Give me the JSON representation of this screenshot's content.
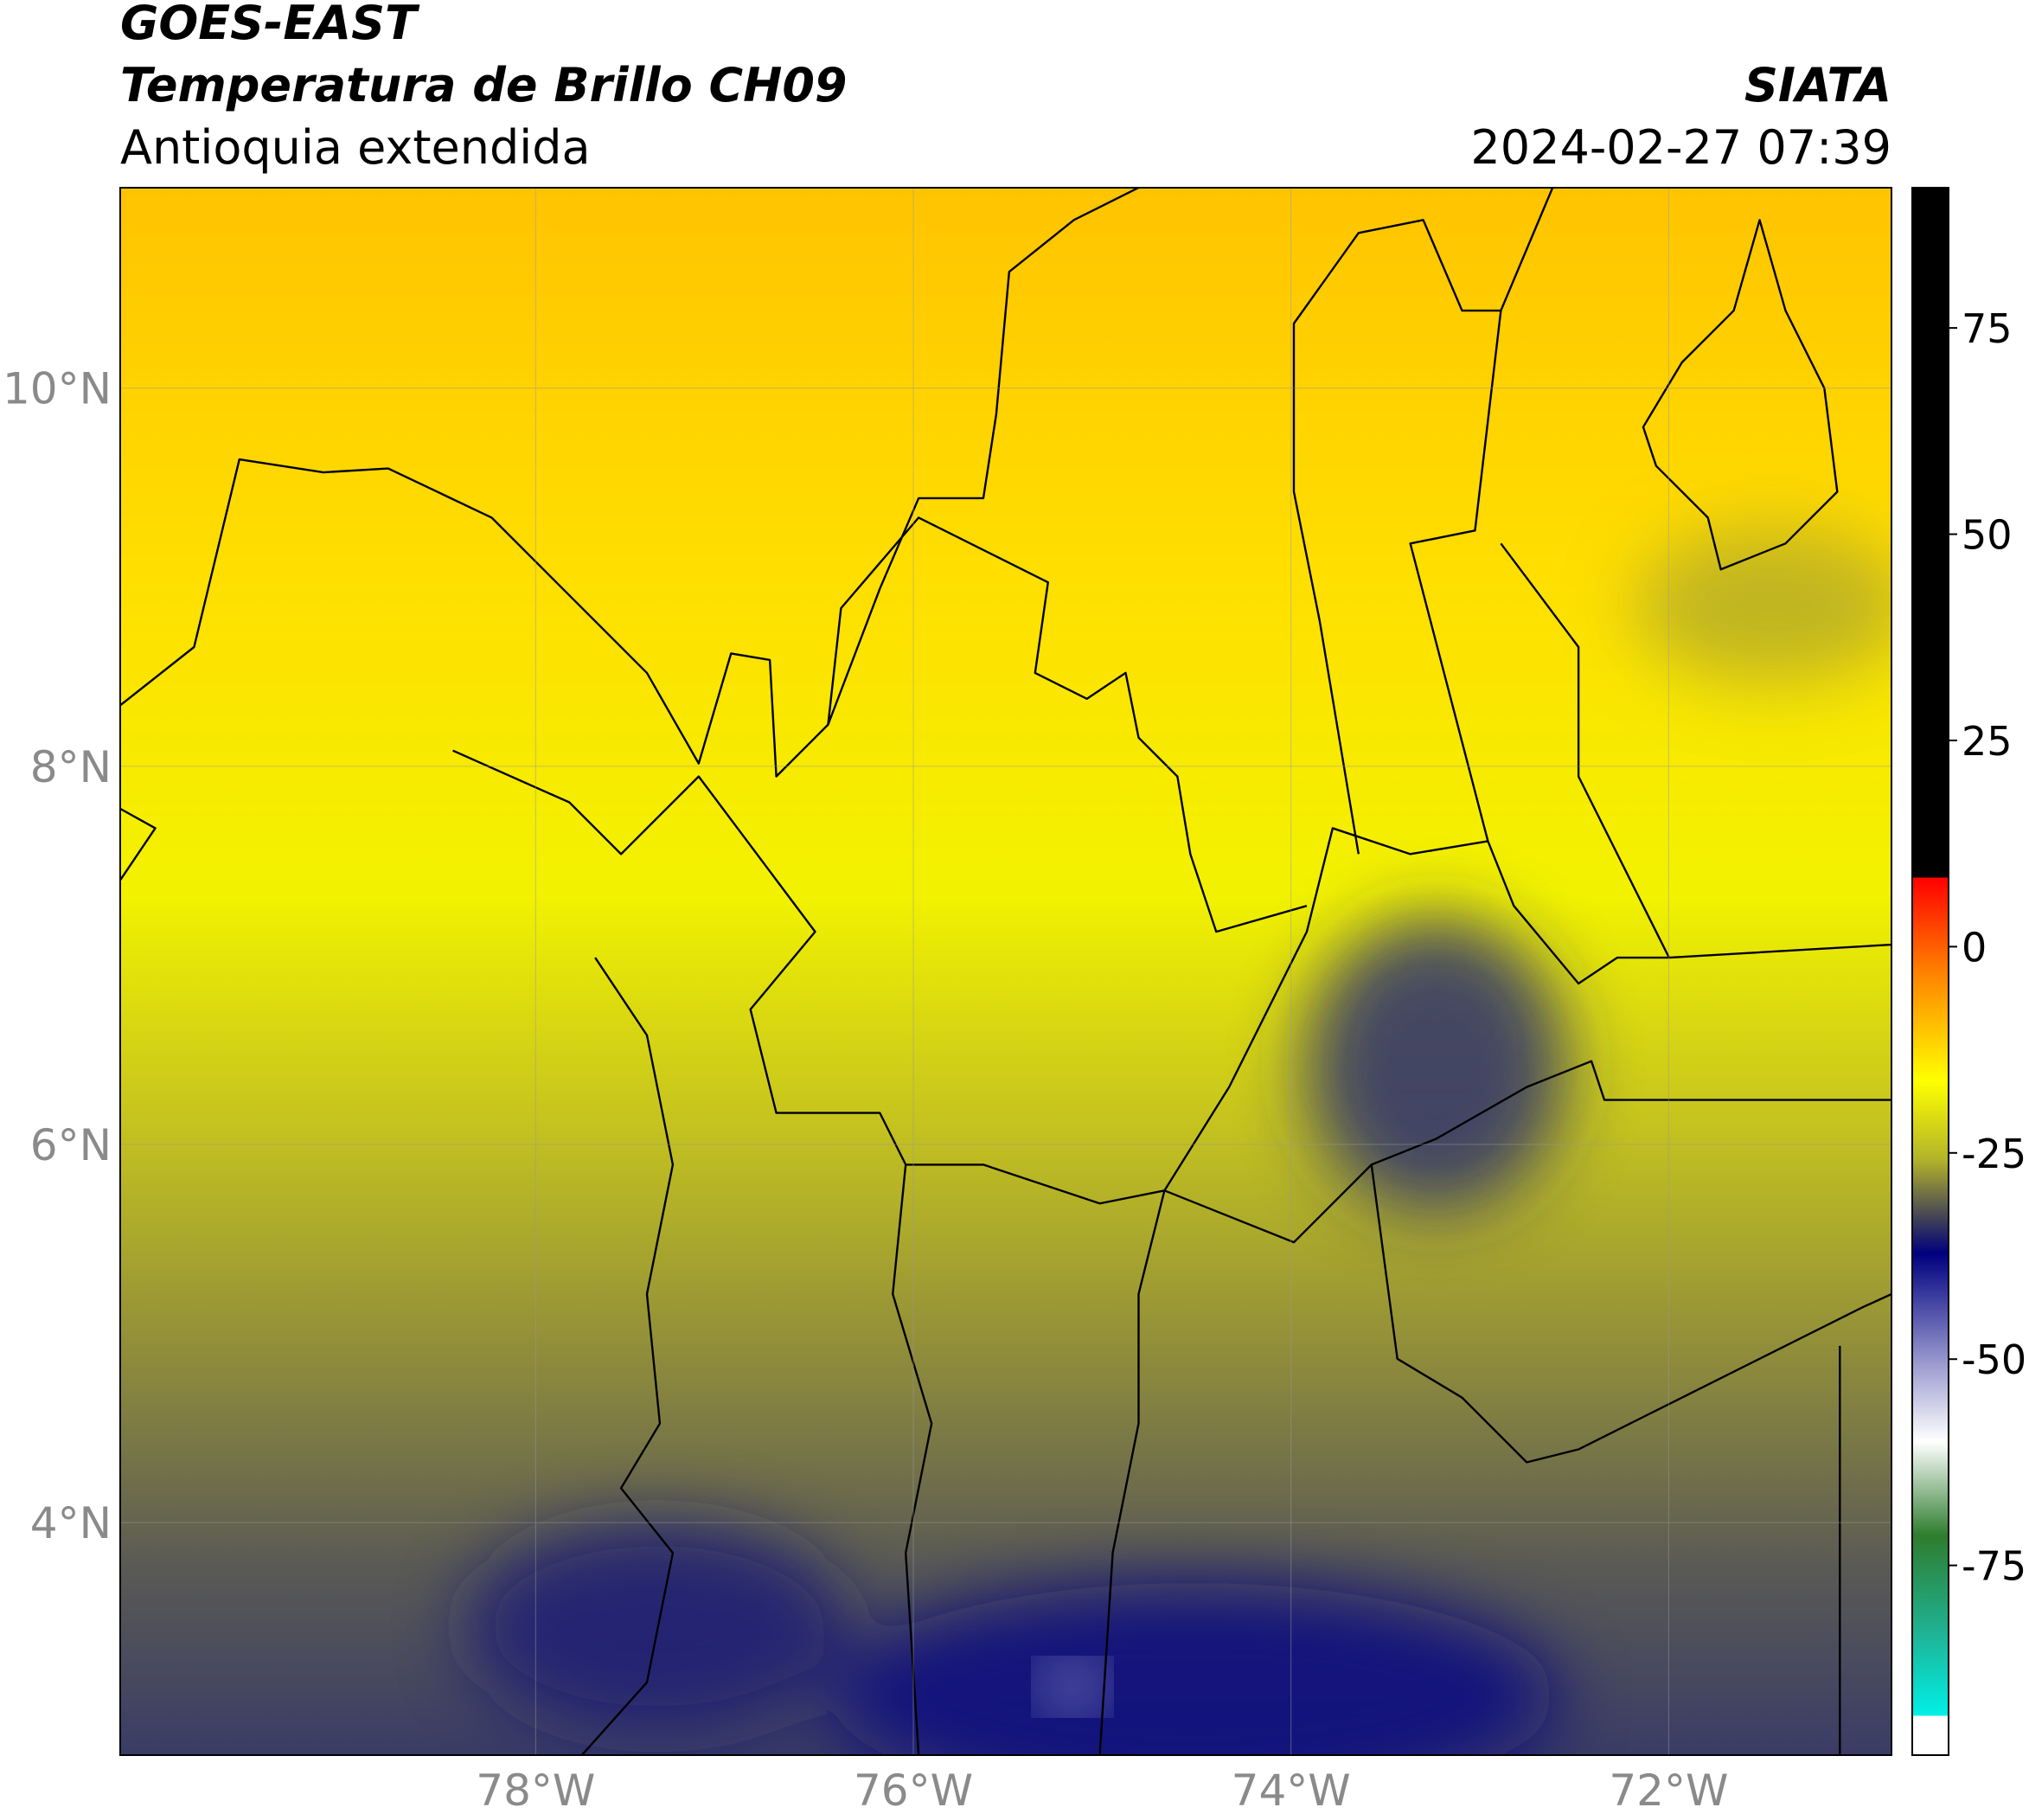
{
  "header": {
    "title": "GOES-EAST",
    "subtitle": "Temperatura de Brillo CH09",
    "region": "Antioquia extendida",
    "source": "SIATA",
    "datetime": "2024-02-27 07:39"
  },
  "map": {
    "xlim": [
      -80.2,
      -70.82
    ],
    "ylim": [
      2.77,
      11.06
    ],
    "xticks": [
      {
        "value": -78,
        "label": "78°W"
      },
      {
        "value": -76,
        "label": "76°W"
      },
      {
        "value": -74,
        "label": "74°W"
      },
      {
        "value": -72,
        "label": "72°W"
      }
    ],
    "yticks": [
      {
        "value": 10,
        "label": "10°N"
      },
      {
        "value": 8,
        "label": "8°N"
      },
      {
        "value": 6,
        "label": "6°N"
      },
      {
        "value": 4,
        "label": "4°N"
      }
    ],
    "grid": true
  },
  "colorbar": {
    "clim": [
      -98,
      92
    ],
    "ticks": [
      75,
      50,
      25,
      0,
      -25,
      -50,
      -75
    ]
  }
}
